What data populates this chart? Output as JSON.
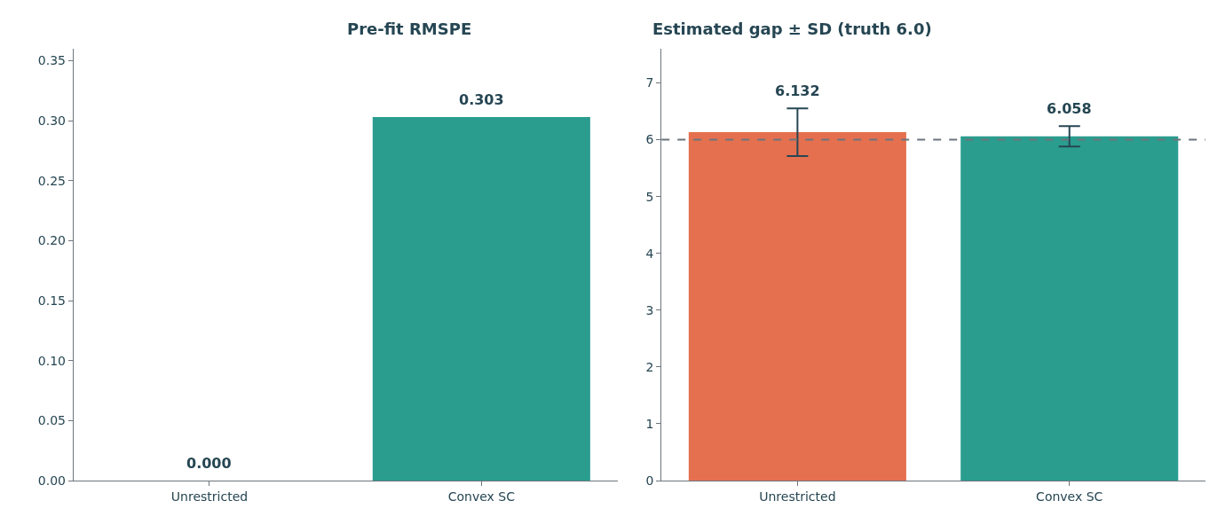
{
  "chart_data": [
    {
      "type": "bar",
      "title": "Pre-fit RMSPE",
      "categories": [
        "Unrestricted",
        "Convex SC"
      ],
      "values": [
        0.0,
        0.303
      ],
      "colors": [
        "#e5704f",
        "#2a9d8f"
      ],
      "value_labels": [
        "0.000",
        "0.303"
      ],
      "ylim": [
        0,
        0.36
      ],
      "yticks": [
        {
          "value": 0,
          "label": "0.00"
        },
        {
          "value": 0.05,
          "label": "0.05"
        },
        {
          "value": 0.1,
          "label": "0.10"
        },
        {
          "value": 0.15,
          "label": "0.15"
        },
        {
          "value": 0.2,
          "label": "0.20"
        },
        {
          "value": 0.25,
          "label": "0.25"
        },
        {
          "value": 0.3,
          "label": "0.30"
        },
        {
          "value": 0.35,
          "label": "0.35"
        }
      ]
    },
    {
      "type": "bar",
      "title": "Estimated gap ± SD (truth 6.0)",
      "categories": [
        "Unrestricted",
        "Convex SC"
      ],
      "values": [
        6.132,
        6.058
      ],
      "colors": [
        "#e5704f",
        "#2a9d8f"
      ],
      "errors": [
        0.42,
        0.18
      ],
      "value_labels": [
        "6.132",
        "6.058"
      ],
      "ylim": [
        0,
        7.6
      ],
      "yticks": [
        0,
        1,
        2,
        3,
        4,
        5,
        6,
        7
      ],
      "ref_lines": [
        {
          "axis": "y",
          "value": 6.0,
          "color": "#6c757d",
          "line_style": "dashed"
        }
      ]
    }
  ]
}
